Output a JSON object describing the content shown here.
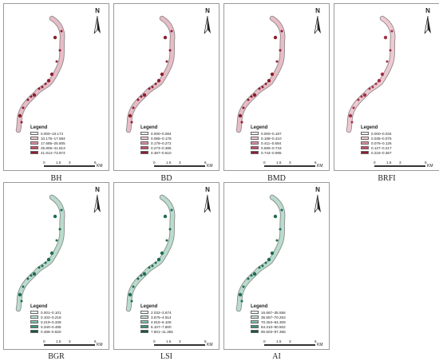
{
  "legend_title": "Legend",
  "north_label": "N",
  "scale": {
    "ticks": [
      "0",
      "1.5",
      "3",
      "6"
    ],
    "unit": "KM"
  },
  "panels": [
    {
      "id": "bh",
      "caption": "BH",
      "river_color": "#e8bcc6",
      "patch_color": "#8b1e2e",
      "classes": [
        {
          "label": "0.000–10.174",
          "color": "#f9eef1"
        },
        {
          "label": "10.175–17.684",
          "color": "#f2ccd6"
        },
        {
          "label": "17.685–25.805",
          "color": "#e58ea4"
        },
        {
          "label": "25.806–41.813",
          "color": "#c84a67"
        },
        {
          "label": "41.814–73.974",
          "color": "#8e1b33"
        }
      ]
    },
    {
      "id": "bd",
      "caption": "BD",
      "river_color": "#e8bcc6",
      "patch_color": "#8b1e2e",
      "classes": [
        {
          "label": "0.000–0.084",
          "color": "#f9eef1"
        },
        {
          "label": "0.085–0.178",
          "color": "#f2ccd6"
        },
        {
          "label": "0.179–0.272",
          "color": "#e58ea4"
        },
        {
          "label": "0.273–0.386",
          "color": "#c84a67"
        },
        {
          "label": "0.387–0.610",
          "color": "#8e1b33"
        }
      ]
    },
    {
      "id": "bmd",
      "caption": "BMD",
      "river_color": "#e8bcc6",
      "patch_color": "#8b1e2e",
      "classes": [
        {
          "label": "0.000–0.187",
          "color": "#f9eef1"
        },
        {
          "label": "0.188–0.410",
          "color": "#f2ccd6"
        },
        {
          "label": "0.411–0.584",
          "color": "#e58ea4"
        },
        {
          "label": "0.585–0.743",
          "color": "#c84a67"
        },
        {
          "label": "0.744–0.995",
          "color": "#8e1b33"
        }
      ]
    },
    {
      "id": "brfi",
      "caption": "BRFI",
      "river_color": "#efc9d2",
      "patch_color": "#a33145",
      "classes": [
        {
          "label": "0.000–0.034",
          "color": "#f9eef1"
        },
        {
          "label": "0.035–0.075",
          "color": "#f2ccd6"
        },
        {
          "label": "0.076–0.126",
          "color": "#e58ea4"
        },
        {
          "label": "0.127–0.217",
          "color": "#c84a67"
        },
        {
          "label": "0.218–0.367",
          "color": "#8e1b33"
        }
      ]
    },
    {
      "id": "bgr",
      "caption": "BGR",
      "river_color": "#b9dccd",
      "patch_color": "#1f6b52",
      "classes": [
        {
          "label": "0.001–0.101",
          "color": "#eef7f3"
        },
        {
          "label": "0.102–0.218",
          "color": "#c5e6d8"
        },
        {
          "label": "0.219–0.339",
          "color": "#7fc4a6"
        },
        {
          "label": "0.340–0.485",
          "color": "#3a9677"
        },
        {
          "label": "0.486–0.820",
          "color": "#17563f"
        }
      ]
    },
    {
      "id": "lsi",
      "caption": "LSI",
      "river_color": "#b9dccd",
      "patch_color": "#1f6b52",
      "classes": [
        {
          "label": "2.032–3.674",
          "color": "#eef7f3"
        },
        {
          "label": "3.675–4.914",
          "color": "#c5e6d8"
        },
        {
          "label": "4.915–6.106",
          "color": "#7fc4a6"
        },
        {
          "label": "6.107–7.800",
          "color": "#3a9677"
        },
        {
          "label": "7.801–11.355",
          "color": "#17563f"
        }
      ]
    },
    {
      "id": "ai",
      "caption": "AI",
      "river_color": "#b9dccd",
      "patch_color": "#1f6b52",
      "classes": [
        {
          "label": "16.667–35.556",
          "color": "#eef7f3"
        },
        {
          "label": "35.557–70.253",
          "color": "#c5e6d8"
        },
        {
          "label": "70.254–84.309",
          "color": "#7fc4a6"
        },
        {
          "label": "84.310–90.502",
          "color": "#3a9677"
        },
        {
          "label": "90.503–97.358",
          "color": "#17563f"
        }
      ]
    }
  ]
}
